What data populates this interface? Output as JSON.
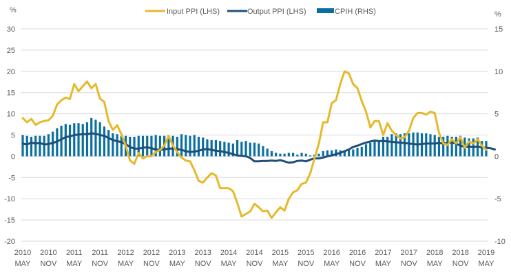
{
  "chart_data": {
    "type": "bar+line",
    "title": "",
    "left_axis": {
      "unit_label": "%",
      "ylim": [
        -20,
        30
      ],
      "ticks": [
        30,
        25,
        20,
        15,
        10,
        5,
        0,
        -5,
        -10,
        -15,
        -20
      ]
    },
    "right_axis": {
      "unit_label": "%",
      "ylim": [
        -10,
        15
      ],
      "ticks": [
        15,
        10,
        5,
        0,
        -5,
        -10
      ]
    },
    "x_start": "2010 MAY",
    "x_end": "2019 MAY",
    "frequency": "monthly",
    "x_tick_labels": [
      {
        "year": "2010",
        "month": "MAY"
      },
      {
        "year": "2010",
        "month": "NOV"
      },
      {
        "year": "2011",
        "month": "MAY"
      },
      {
        "year": "2011",
        "month": "NOV"
      },
      {
        "year": "2012",
        "month": "MAY"
      },
      {
        "year": "2012",
        "month": "NOV"
      },
      {
        "year": "2013",
        "month": "MAY"
      },
      {
        "year": "2013",
        "month": "NOV"
      },
      {
        "year": "2014",
        "month": "MAY"
      },
      {
        "year": "2014",
        "month": "NOV"
      },
      {
        "year": "2015",
        "month": "MAY"
      },
      {
        "year": "2015",
        "month": "NOV"
      },
      {
        "year": "2016",
        "month": "MAY"
      },
      {
        "year": "2016",
        "month": "NOV"
      },
      {
        "year": "2017",
        "month": "MAY"
      },
      {
        "year": "2017",
        "month": "NOV"
      },
      {
        "year": "2018",
        "month": "MAY"
      },
      {
        "year": "2018",
        "month": "NOV"
      },
      {
        "year": "2019",
        "month": "MAY"
      }
    ],
    "legend_position": "top-center",
    "series": [
      {
        "name": "Input PPI (LHS)",
        "kind": "line",
        "axis": "left",
        "color": "#E5B92A",
        "values": [
          9.0,
          8.0,
          8.8,
          7.4,
          8.0,
          8.3,
          8.5,
          9.5,
          12.2,
          13.2,
          13.8,
          13.5,
          17.0,
          15.3,
          16.5,
          17.6,
          16.0,
          17.0,
          13.6,
          12.8,
          8.3,
          6.2,
          7.3,
          5.2,
          2.5,
          -1.0,
          -1.8,
          0.8,
          -0.5,
          0.0,
          0.0,
          1.0,
          1.5,
          2.5,
          4.8,
          2.5,
          1.0,
          -0.3,
          -1.0,
          -1.2,
          -3.3,
          -5.8,
          -6.2,
          -5.0,
          -4.0,
          -4.5,
          -7.5,
          -7.5,
          -7.5,
          -8.2,
          -11.0,
          -14.2,
          -13.6,
          -13.0,
          -11.2,
          -12.0,
          -13.0,
          -12.8,
          -14.5,
          -13.2,
          -12.0,
          -12.8,
          -10.0,
          -8.5,
          -8.0,
          -6.5,
          -6.2,
          -4.0,
          -0.5,
          3.0,
          8.0,
          8.0,
          12.5,
          13.2,
          17.0,
          20.0,
          19.5,
          17.0,
          16.0,
          13.0,
          10.5,
          6.8,
          8.3,
          8.3,
          5.0,
          7.8,
          6.0,
          5.0,
          4.2,
          4.5,
          6.0,
          9.0,
          10.2,
          10.2,
          9.8,
          10.5,
          10.2,
          5.5,
          3.0,
          2.7,
          4.0,
          3.0,
          4.5,
          2.0,
          3.5,
          3.0,
          4.0,
          2.5,
          1.5
        ]
      },
      {
        "name": "Output PPI (LHS)",
        "kind": "line",
        "axis": "left",
        "color": "#1F4E79",
        "values": [
          3.0,
          2.8,
          3.2,
          3.0,
          3.1,
          2.8,
          2.9,
          3.1,
          3.5,
          4.0,
          4.5,
          4.7,
          5.0,
          5.1,
          5.2,
          5.2,
          5.4,
          5.3,
          5.0,
          4.8,
          4.3,
          3.8,
          3.6,
          3.3,
          2.8,
          2.2,
          1.8,
          1.8,
          2.0,
          2.1,
          1.9,
          1.6,
          1.5,
          1.6,
          1.8,
          1.8,
          1.7,
          1.5,
          1.2,
          1.0,
          1.1,
          1.3,
          1.6,
          1.7,
          1.5,
          1.3,
          1.2,
          1.0,
          0.8,
          0.5,
          0.2,
          0.1,
          0.0,
          -0.4,
          -1.2,
          -1.2,
          -1.1,
          -1.1,
          -1.0,
          -1.1,
          -0.9,
          -1.2,
          -1.5,
          -1.4,
          -1.1,
          -1.0,
          -1.2,
          -0.8,
          -0.5,
          -0.5,
          -0.3,
          0.0,
          0.2,
          0.5,
          0.8,
          1.2,
          1.6,
          2.2,
          2.5,
          2.9,
          3.2,
          3.5,
          3.7,
          3.6,
          3.6,
          3.5,
          3.4,
          3.3,
          3.2,
          3.1,
          3.0,
          2.9,
          2.8,
          2.9,
          3.0,
          3.0,
          3.0,
          3.1,
          3.0,
          3.1,
          3.2,
          3.0,
          2.5,
          2.2,
          2.3,
          2.2,
          2.3,
          2.1,
          2.0,
          1.9,
          1.6
        ]
      },
      {
        "name": "CPIH (RHS)",
        "kind": "bar",
        "axis": "right",
        "color": "#0A6FA0",
        "values": [
          2.5,
          2.4,
          2.3,
          2.4,
          2.4,
          2.4,
          2.6,
          2.9,
          3.3,
          3.6,
          3.8,
          3.7,
          3.9,
          3.9,
          3.8,
          4.0,
          4.5,
          4.3,
          4.0,
          3.5,
          3.1,
          2.7,
          2.6,
          2.4,
          2.4,
          2.3,
          2.3,
          2.4,
          2.4,
          2.4,
          2.4,
          2.5,
          2.4,
          2.4,
          2.5,
          2.4,
          2.3,
          2.6,
          2.5,
          2.4,
          2.5,
          2.3,
          2.2,
          2.0,
          1.9,
          1.9,
          1.8,
          1.7,
          1.6,
          1.5,
          1.9,
          1.7,
          1.8,
          1.6,
          1.6,
          1.5,
          1.2,
          0.9,
          0.6,
          0.4,
          0.3,
          0.3,
          0.4,
          0.4,
          0.2,
          0.4,
          0.3,
          0.1,
          0.2,
          0.3,
          0.6,
          0.7,
          0.7,
          0.8,
          0.7,
          0.7,
          0.7,
          0.8,
          1.0,
          1.1,
          1.4,
          1.6,
          1.8,
          1.9,
          2.3,
          2.3,
          2.6,
          2.7,
          2.6,
          2.7,
          2.7,
          2.8,
          2.8,
          2.7,
          2.7,
          2.6,
          2.5,
          2.3,
          2.3,
          2.4,
          2.3,
          2.3,
          2.4,
          2.2,
          2.1,
          2.1,
          2.2,
          1.8,
          1.8
        ]
      }
    ]
  },
  "legend": {
    "items": [
      {
        "label": "Input PPI (LHS)",
        "swatch": "line",
        "color": "#E5B92A"
      },
      {
        "label": "Output PPI (LHS)",
        "swatch": "line",
        "color": "#1F4E79"
      },
      {
        "label": "CPIH (RHS)",
        "swatch": "bar",
        "color": "#0A6FA0"
      }
    ]
  }
}
